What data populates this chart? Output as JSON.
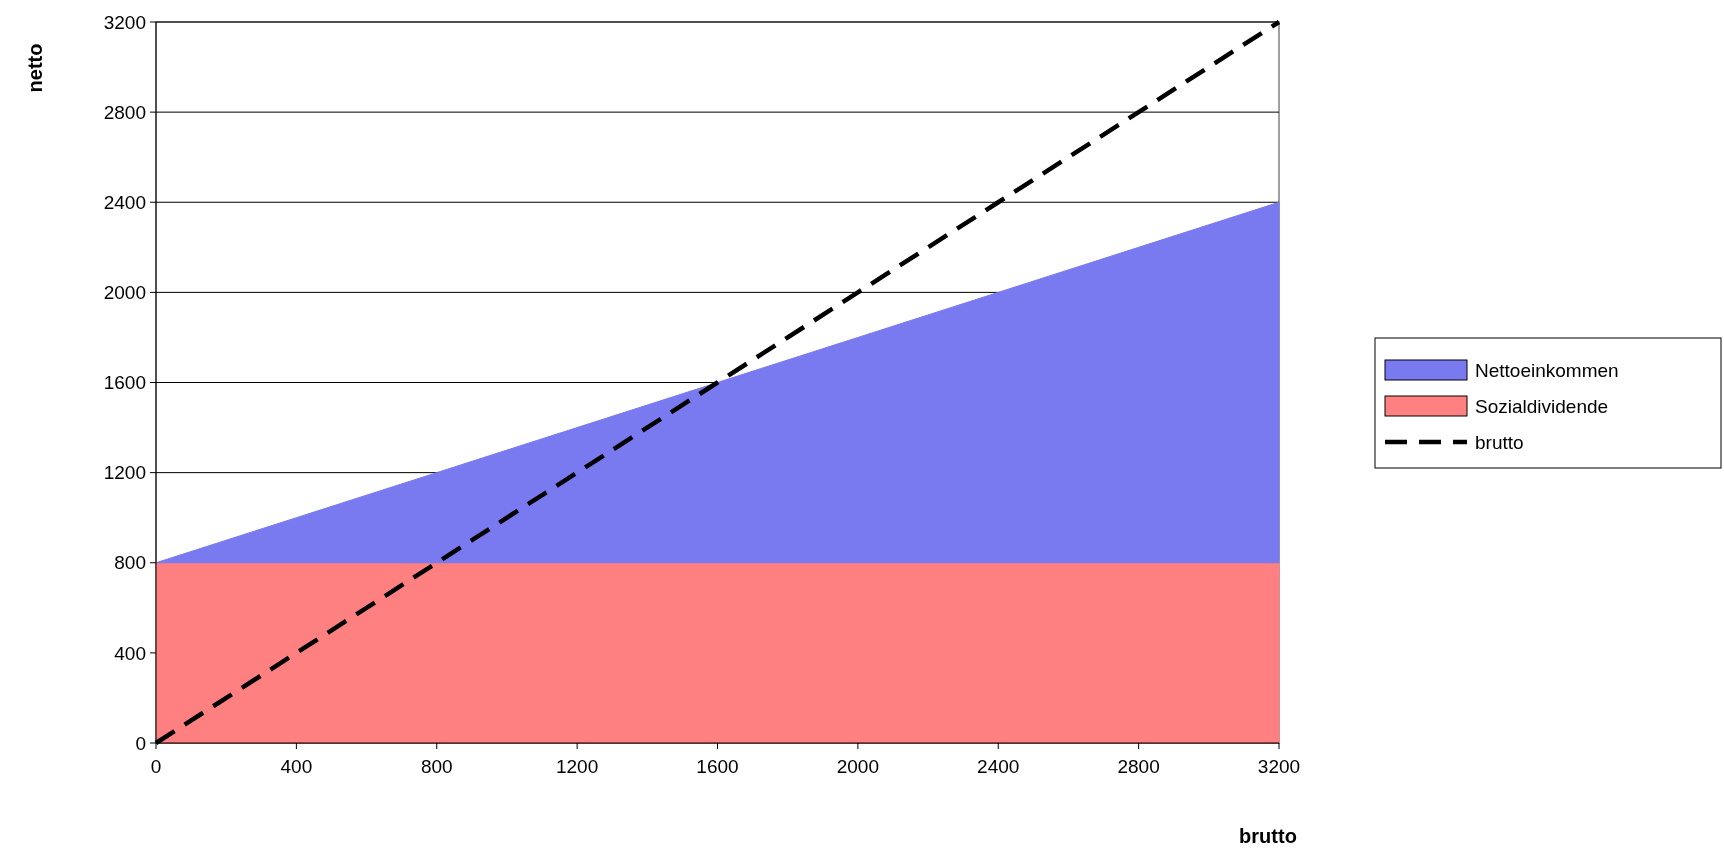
{
  "chart_data": {
    "type": "area",
    "xlabel": "brutto",
    "ylabel": "netto",
    "stacked": true,
    "x": [
      0,
      400,
      800,
      1200,
      1600,
      2000,
      2400,
      2800,
      3200
    ],
    "series": [
      {
        "name": "Sozialdividende",
        "color": "#ff8080",
        "values": [
          800,
          800,
          800,
          800,
          800,
          800,
          800,
          800,
          800
        ]
      },
      {
        "name": "Nettoeinkommen",
        "color": "#7a7af0",
        "values": [
          0,
          200,
          400,
          600,
          800,
          1000,
          1200,
          1400,
          1600
        ]
      },
      {
        "name": "brutto",
        "type": "line",
        "color": "#000000",
        "line_style": "dashed",
        "values": [
          0,
          400,
          800,
          1200,
          1600,
          2000,
          2400,
          2800,
          3200
        ]
      }
    ],
    "xlim": [
      0,
      3200
    ],
    "ylim": [
      0,
      3200
    ],
    "xticks": [
      0,
      400,
      800,
      1200,
      1600,
      2000,
      2400,
      2800,
      3200
    ],
    "yticks": [
      0,
      400,
      800,
      1200,
      1600,
      2000,
      2400,
      2800,
      3200
    ],
    "grid": "y",
    "legend": "right"
  }
}
